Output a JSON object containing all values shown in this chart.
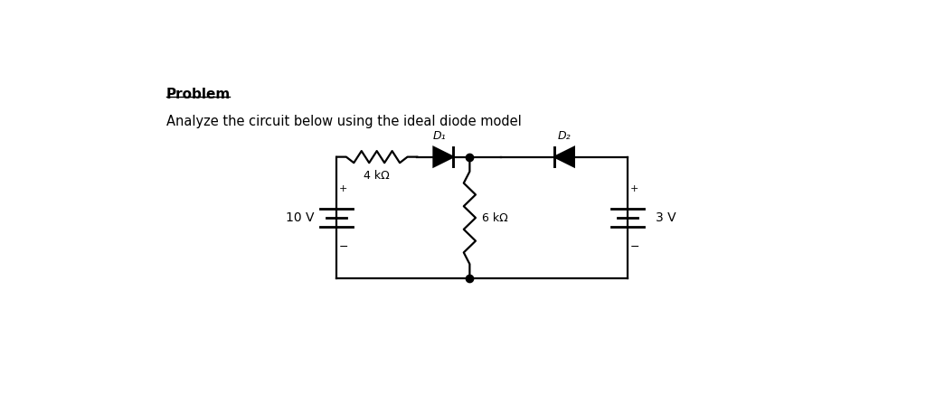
{
  "title": "Problem",
  "subtitle": "Analyze the circuit below using the ideal diode model",
  "bg_color": "#ffffff",
  "text_color": "#000000",
  "circuit": {
    "left_voltage": "10 V",
    "resistor1": "4 kΩ",
    "diode1": "D₁",
    "diode2": "D₂",
    "resistor2": "6 kΩ",
    "right_voltage": "3 V"
  }
}
